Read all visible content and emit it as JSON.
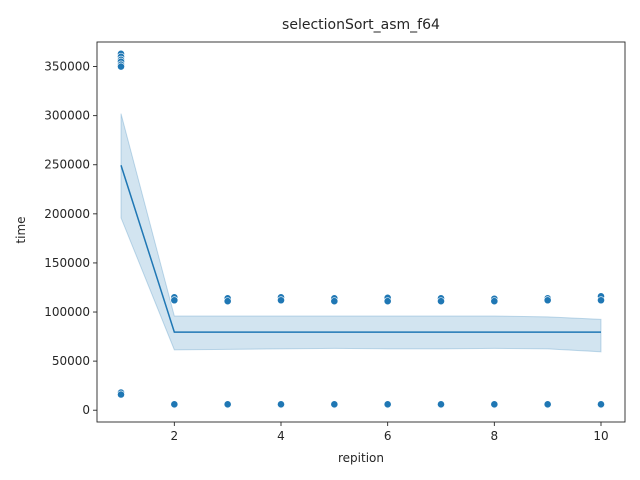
{
  "chart_data": {
    "type": "line",
    "title": "selectionSort_asm_f64",
    "xlabel": "repition",
    "ylabel": "time",
    "xlim": [
      0.55,
      10.45
    ],
    "ylim": [
      -12000,
      375000
    ],
    "xticks": [
      2,
      4,
      6,
      8,
      10
    ],
    "yticks": [
      0,
      50000,
      100000,
      150000,
      200000,
      250000,
      300000,
      350000
    ],
    "grid": false,
    "colors": {
      "series": "#1f77b4",
      "band": "#1f77b4",
      "axes": "#262626"
    },
    "mean_line": {
      "x": [
        1,
        2,
        3,
        4,
        5,
        6,
        7,
        8,
        9,
        10
      ],
      "y": [
        249500,
        79500,
        79500,
        79500,
        79500,
        79500,
        79500,
        79500,
        79500,
        79500
      ]
    },
    "confidence_band": {
      "x": [
        1,
        2,
        3,
        4,
        5,
        6,
        7,
        8,
        9,
        10
      ],
      "lower": [
        196000,
        61500,
        62000,
        62500,
        63000,
        62500,
        62500,
        63000,
        62500,
        59500
      ],
      "upper": [
        302000,
        96000,
        96000,
        96000,
        96000,
        96000,
        96000,
        96000,
        95000,
        92500
      ]
    },
    "scatter": {
      "x": [
        1,
        1,
        1,
        1,
        1,
        1,
        1,
        1,
        1,
        1,
        2,
        2,
        2,
        2,
        3,
        3,
        3,
        3,
        4,
        4,
        4,
        4,
        5,
        5,
        5,
        5,
        6,
        6,
        6,
        6,
        7,
        7,
        7,
        7,
        8,
        8,
        8,
        8,
        9,
        9,
        9,
        9,
        10,
        10,
        10,
        10
      ],
      "y": [
        363000,
        360000,
        357000,
        355000,
        352000,
        350000,
        16500,
        17500,
        18000,
        16000,
        115000,
        112000,
        5500,
        6000,
        114000,
        111000,
        5500,
        6000,
        115000,
        112000,
        5500,
        6000,
        114000,
        111000,
        5500,
        6000,
        114500,
        111000,
        5500,
        6000,
        114000,
        111000,
        5500,
        6000,
        113500,
        111000,
        5500,
        6000,
        114000,
        112000,
        5500,
        6000,
        116000,
        112000,
        5500,
        6000
      ]
    }
  }
}
